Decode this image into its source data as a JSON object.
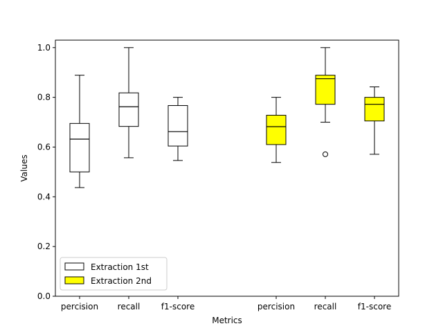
{
  "chart_data": {
    "type": "box",
    "title": "",
    "xlabel": "Metrics",
    "ylabel": "Values",
    "ylim": [
      0.0,
      1.03
    ],
    "yticks": [
      "0.0",
      "0.2",
      "0.4",
      "0.6",
      "0.8",
      "1.0"
    ],
    "grid": false,
    "legend_position": "lower-left",
    "categories": [
      "percision",
      "recall",
      "f1-score",
      "percision",
      "recall",
      "f1-score"
    ],
    "series": [
      {
        "name": "Extraction 1st",
        "color": "#ffffff",
        "boxes": [
          {
            "category": "percision",
            "whisker_low": 0.437,
            "q1": 0.5,
            "median": 0.632,
            "q3": 0.695,
            "whisker_high": 0.889,
            "outliers": []
          },
          {
            "category": "recall",
            "whisker_low": 0.557,
            "q1": 0.683,
            "median": 0.762,
            "q3": 0.818,
            "whisker_high": 1.0,
            "outliers": []
          },
          {
            "category": "f1-score",
            "whisker_low": 0.546,
            "q1": 0.604,
            "median": 0.662,
            "q3": 0.767,
            "whisker_high": 0.8,
            "outliers": []
          }
        ]
      },
      {
        "name": "Extraction 2nd",
        "color": "#ffff00",
        "boxes": [
          {
            "category": "percision",
            "whisker_low": 0.538,
            "q1": 0.61,
            "median": 0.682,
            "q3": 0.728,
            "whisker_high": 0.8,
            "outliers": []
          },
          {
            "category": "recall",
            "whisker_low": 0.7,
            "q1": 0.772,
            "median": 0.875,
            "q3": 0.889,
            "whisker_high": 1.0,
            "outliers": [
              0.571
            ]
          },
          {
            "category": "f1-score",
            "whisker_low": 0.571,
            "q1": 0.705,
            "median": 0.772,
            "q3": 0.8,
            "whisker_high": 0.842,
            "outliers": []
          }
        ]
      }
    ]
  }
}
